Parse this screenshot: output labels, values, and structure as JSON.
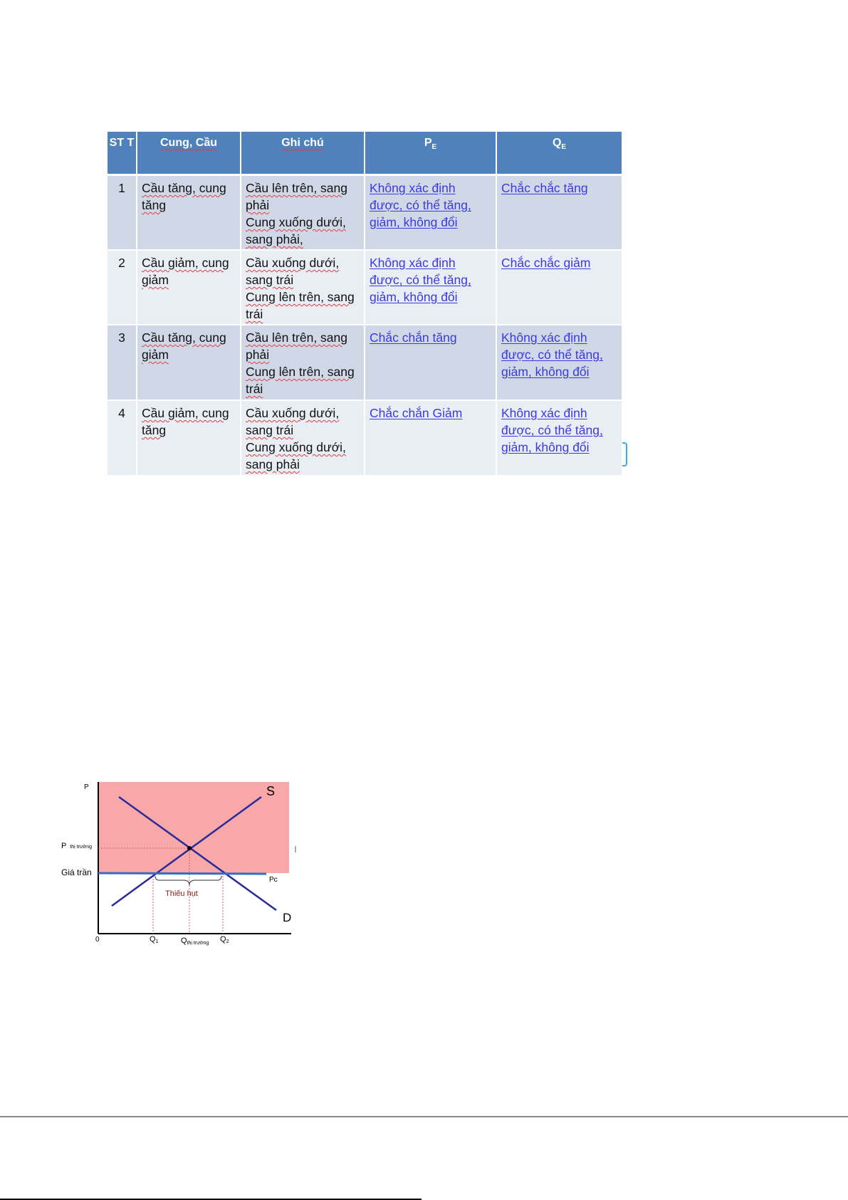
{
  "table": {
    "headers": [
      "ST T",
      "Cung, Cầu",
      "Ghi chú",
      "P",
      "Q"
    ],
    "header_subscripts": {
      "p": "E",
      "q": "E"
    },
    "rows": [
      {
        "stt": "1",
        "cung_cau": "Cầu tăng, cung tăng",
        "ghi_chu_1": "Cầu lên trên, sang phải",
        "ghi_chu_2": "Cung xuống dưới, sang phải,",
        "pe": "Không xác định được, có thể tăng, giảm, không đổi",
        "qe": "Chắc chắc tăng"
      },
      {
        "stt": "2",
        "cung_cau": "Cầu giảm, cung giảm",
        "ghi_chu_1": "Cầu xuống dưới, sang trái",
        "ghi_chu_2": "Cung lên trên, sang trái",
        "pe": "Không xác định được, có thể tăng, giảm, không đổi",
        "qe": "Chắc chắc giảm"
      },
      {
        "stt": "3",
        "cung_cau": "Cầu tăng, cung giảm",
        "ghi_chu_1": "Cầu lên trên, sang phải",
        "ghi_chu_2": "Cung lên trên, sang trái",
        "pe": "Chắc chắn tăng",
        "qe": "Không xác định được, có thể tăng, giảm, không đổi"
      },
      {
        "stt": "4",
        "cung_cau": "Cầu giảm, cung tăng",
        "ghi_chu_1": "Cầu xuống dưới, sang trái",
        "ghi_chu_2": "Cung xuống dưới, sang phải",
        "pe": "Chắc chắn Giảm",
        "qe": "Không xác định được, có thể tăng, giảm, không đổi"
      }
    ],
    "colors": {
      "header": "#4f81bd",
      "row_odd": "#d0d8e8",
      "row_even": "#e9edf4",
      "link_text": "#3a3adf"
    }
  },
  "diagram": {
    "y_axis_label": "P",
    "origin_label": "0",
    "p_market_label": "P",
    "p_market_sub": "thị trường",
    "ceiling_label": "Giá trần",
    "pc_label": "Pc",
    "supply_label": "S",
    "demand_label": "D",
    "shortage_label": "Thiếu hụt",
    "q1_label": "Q",
    "q1_sub": "1",
    "q_market_label": "Q",
    "q_market_sub": "thị trường",
    "q2_label": "Q",
    "q2_sub": "2",
    "colors": {
      "region": "#f8a8a8",
      "curves": "#2a2a9a",
      "ceiling": "#2f6fc8",
      "guides": "#d06060",
      "shortage_text": "#8b1a1a"
    }
  }
}
